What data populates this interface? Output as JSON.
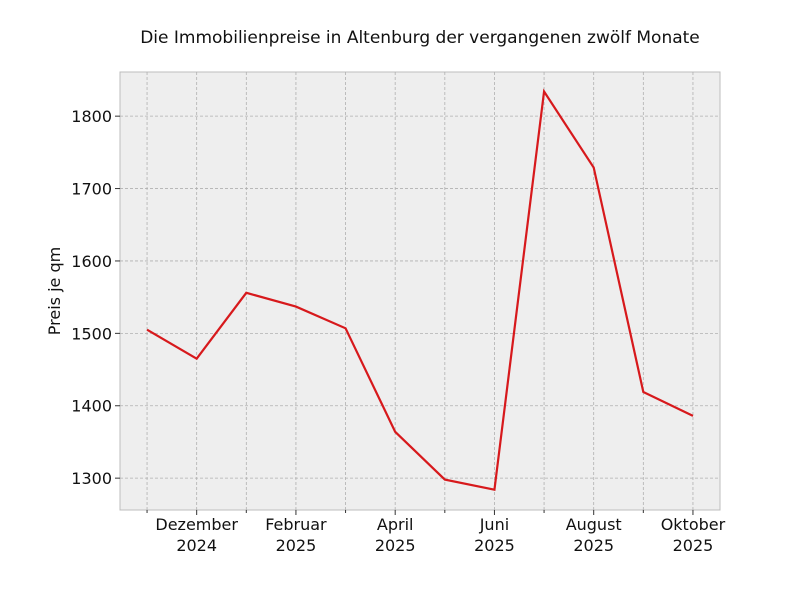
{
  "chart_data": {
    "type": "line",
    "title": "Die Immobilienpreise in Altenburg der vergangenen zwölf Monate",
    "y_label": "Preis je qm",
    "categories": [
      null,
      "Dezember\n2024",
      null,
      "Februar\n2025",
      null,
      "April\n2025",
      null,
      "Juni\n2025",
      null,
      "August\n2025",
      null,
      "Oktober\n2025"
    ],
    "series": [
      {
        "name": "Preis je qm",
        "color": "#d7191c",
        "values": [
          1505,
          1465,
          1556,
          1537,
          1507,
          1364,
          1298,
          1284,
          1834,
          1729,
          1419,
          1386
        ]
      }
    ],
    "ylim": [
      1256,
      1861
    ],
    "yticks": [
      1300,
      1400,
      1500,
      1600,
      1700,
      1800
    ],
    "grid": true
  }
}
